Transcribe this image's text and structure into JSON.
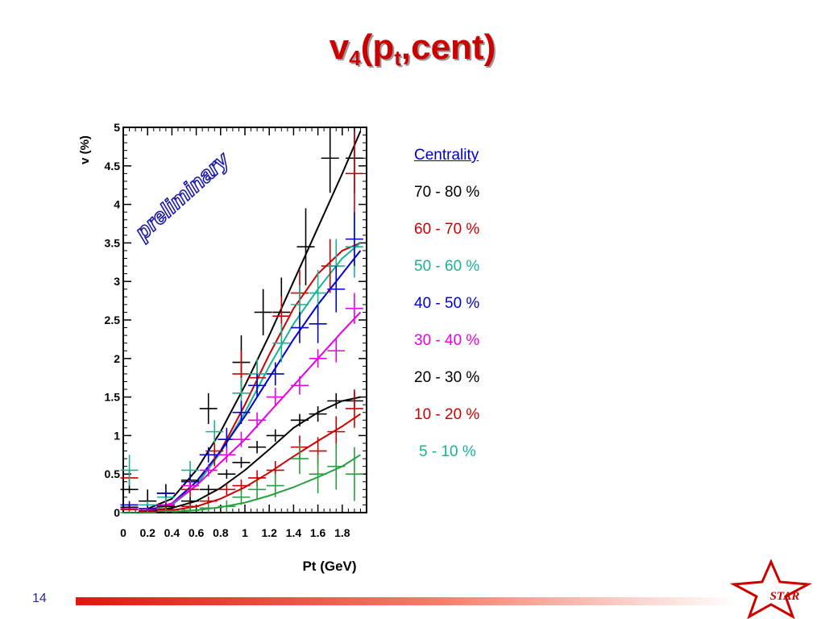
{
  "slide": {
    "title_main": "v",
    "title_sub4": "4",
    "title_mid": "(p",
    "title_subt": "t",
    "title_end": ",cent)",
    "page_number": "14",
    "logo_text": "STAR",
    "accent_color": "#cc0000"
  },
  "legend": {
    "header": "Centrality",
    "items": [
      {
        "label": "70 - 80 %",
        "color": "#000000"
      },
      {
        "label": "60 - 70 %",
        "color": "#cc0000"
      },
      {
        "label": "50 - 60 %",
        "color": "#19b394"
      },
      {
        "label": "40 - 50 %",
        "color": "#0000cc"
      },
      {
        "label": "30 - 40 %",
        "color": "#e600e6"
      },
      {
        "label": "20 - 30 %",
        "color": "#000000"
      },
      {
        "label": "10 - 20 %",
        "color": "#cc0000"
      },
      {
        "label": "5 - 10 %",
        "color": "#19b394"
      }
    ]
  },
  "chart_data": {
    "type": "scatter",
    "title": "",
    "xlabel": "Pt (GeV)",
    "ylabel": "v (%)",
    "watermark": "preliminary",
    "xlim": [
      0,
      2.0
    ],
    "ylim": [
      0,
      5
    ],
    "xticks": [
      "0",
      "0.2",
      "0.4",
      "0.6",
      "0.8",
      "1",
      "1.2",
      "1.4",
      "1.6",
      "1.8"
    ],
    "yticks": [
      "0",
      "0.5",
      "1",
      "1.5",
      "2",
      "2.5",
      "3",
      "3.5",
      "4",
      "4.5",
      "5"
    ],
    "series": [
      {
        "color": "#000000",
        "fit": [
          [
            0.2,
            0.05
          ],
          [
            0.4,
            0.18
          ],
          [
            0.6,
            0.55
          ],
          [
            0.8,
            1.05
          ],
          [
            1.0,
            1.65
          ],
          [
            1.2,
            2.3
          ],
          [
            1.4,
            3.0
          ],
          [
            1.6,
            3.7
          ],
          [
            1.8,
            4.4
          ],
          [
            1.95,
            4.95
          ]
        ],
        "points": [
          [
            0.05,
            0.3,
            0.05
          ],
          [
            0.2,
            0.15,
            0.15
          ],
          [
            0.35,
            0.25,
            0.12
          ],
          [
            0.55,
            0.42,
            0.12
          ],
          [
            0.7,
            1.35,
            0.2
          ],
          [
            0.97,
            1.95,
            0.35
          ],
          [
            1.15,
            2.6,
            0.3
          ],
          [
            1.3,
            2.6,
            0.45
          ],
          [
            1.5,
            3.45,
            0.5
          ],
          [
            1.7,
            4.6,
            0.45
          ],
          [
            1.9,
            4.6,
            0.45
          ]
        ]
      },
      {
        "color": "#cc0000",
        "fit": [
          [
            0.2,
            0.03
          ],
          [
            0.4,
            0.1
          ],
          [
            0.6,
            0.35
          ],
          [
            0.8,
            0.8
          ],
          [
            1.0,
            1.4
          ],
          [
            1.2,
            2.05
          ],
          [
            1.4,
            2.65
          ],
          [
            1.6,
            3.1
          ],
          [
            1.8,
            3.4
          ],
          [
            1.95,
            3.5
          ]
        ],
        "points": [
          [
            0.05,
            0.45,
            0.1
          ],
          [
            0.2,
            0.05,
            0.05
          ],
          [
            0.35,
            0.1,
            0.08
          ],
          [
            0.55,
            0.3,
            0.1
          ],
          [
            0.75,
            0.8,
            0.2
          ],
          [
            0.97,
            1.8,
            0.3
          ],
          [
            1.1,
            1.75,
            0.2
          ],
          [
            1.3,
            2.55,
            0.25
          ],
          [
            1.45,
            2.85,
            0.3
          ],
          [
            1.7,
            3.2,
            0.35
          ],
          [
            1.9,
            4.4,
            0.55
          ]
        ]
      },
      {
        "color": "#19b394",
        "fit": [
          [
            0.2,
            0.03
          ],
          [
            0.4,
            0.1
          ],
          [
            0.6,
            0.35
          ],
          [
            0.8,
            0.78
          ],
          [
            1.0,
            1.3
          ],
          [
            1.2,
            1.9
          ],
          [
            1.4,
            2.45
          ],
          [
            1.6,
            2.9
          ],
          [
            1.8,
            3.3
          ],
          [
            1.95,
            3.5
          ]
        ],
        "points": [
          [
            0.05,
            0.55,
            0.2
          ],
          [
            0.2,
            0.1,
            0.05
          ],
          [
            0.35,
            0.2,
            0.1
          ],
          [
            0.55,
            0.55,
            0.12
          ],
          [
            0.75,
            1.05,
            0.15
          ],
          [
            0.97,
            1.55,
            0.2
          ],
          [
            1.1,
            1.8,
            0.2
          ],
          [
            1.3,
            2.2,
            0.25
          ],
          [
            1.45,
            2.7,
            0.25
          ],
          [
            1.6,
            2.85,
            0.3
          ],
          [
            1.75,
            3.2,
            0.35
          ],
          [
            1.9,
            3.45,
            0.4
          ]
        ]
      },
      {
        "color": "#0000cc",
        "fit": [
          [
            0.2,
            0.03
          ],
          [
            0.4,
            0.12
          ],
          [
            0.6,
            0.4
          ],
          [
            0.8,
            0.8
          ],
          [
            1.0,
            1.25
          ],
          [
            1.2,
            1.75
          ],
          [
            1.4,
            2.25
          ],
          [
            1.6,
            2.7
          ],
          [
            1.8,
            3.1
          ],
          [
            1.95,
            3.4
          ]
        ],
        "points": [
          [
            0.05,
            0.1,
            0.05
          ],
          [
            0.2,
            0.05,
            0.04
          ],
          [
            0.35,
            0.25,
            0.05
          ],
          [
            0.55,
            0.4,
            0.1
          ],
          [
            0.7,
            0.75,
            0.1
          ],
          [
            0.85,
            0.95,
            0.15
          ],
          [
            0.97,
            1.3,
            0.15
          ],
          [
            1.1,
            1.65,
            0.15
          ],
          [
            1.25,
            1.8,
            0.15
          ],
          [
            1.45,
            2.4,
            0.2
          ],
          [
            1.6,
            2.45,
            0.25
          ],
          [
            1.75,
            2.9,
            0.3
          ],
          [
            1.9,
            3.55,
            0.35
          ]
        ]
      },
      {
        "color": "#e600e6",
        "fit": [
          [
            0.2,
            0.03
          ],
          [
            0.4,
            0.12
          ],
          [
            0.6,
            0.35
          ],
          [
            0.8,
            0.65
          ],
          [
            1.0,
            0.95
          ],
          [
            1.2,
            1.3
          ],
          [
            1.4,
            1.65
          ],
          [
            1.6,
            2.0
          ],
          [
            1.8,
            2.35
          ],
          [
            1.95,
            2.6
          ]
        ],
        "points": [
          [
            0.05,
            0.05,
            0.04
          ],
          [
            0.2,
            0.03,
            0.03
          ],
          [
            0.35,
            0.1,
            0.05
          ],
          [
            0.55,
            0.35,
            0.07
          ],
          [
            0.7,
            0.55,
            0.08
          ],
          [
            0.85,
            0.75,
            0.1
          ],
          [
            0.97,
            0.95,
            0.1
          ],
          [
            1.1,
            1.2,
            0.1
          ],
          [
            1.25,
            1.5,
            0.12
          ],
          [
            1.45,
            1.65,
            0.12
          ],
          [
            1.6,
            2.0,
            0.12
          ],
          [
            1.75,
            2.1,
            0.15
          ],
          [
            1.9,
            2.65,
            0.2
          ]
        ]
      },
      {
        "color": "#000000",
        "fit": [
          [
            0.2,
            0.02
          ],
          [
            0.4,
            0.06
          ],
          [
            0.6,
            0.15
          ],
          [
            0.8,
            0.32
          ],
          [
            1.0,
            0.55
          ],
          [
            1.2,
            0.82
          ],
          [
            1.4,
            1.1
          ],
          [
            1.6,
            1.3
          ],
          [
            1.8,
            1.45
          ],
          [
            1.95,
            1.5
          ]
        ],
        "points": [
          [
            0.05,
            0.07,
            0.03
          ],
          [
            0.2,
            0.02,
            0.02
          ],
          [
            0.35,
            0.08,
            0.04
          ],
          [
            0.55,
            0.15,
            0.05
          ],
          [
            0.7,
            0.3,
            0.06
          ],
          [
            0.85,
            0.5,
            0.06
          ],
          [
            0.97,
            0.65,
            0.07
          ],
          [
            1.1,
            0.85,
            0.08
          ],
          [
            1.25,
            1.0,
            0.08
          ],
          [
            1.45,
            1.2,
            0.08
          ],
          [
            1.6,
            1.28,
            0.1
          ],
          [
            1.75,
            1.45,
            0.1
          ],
          [
            1.9,
            1.45,
            0.12
          ]
        ]
      },
      {
        "color": "#cc0000",
        "fit": [
          [
            0.2,
            0.01
          ],
          [
            0.4,
            0.03
          ],
          [
            0.6,
            0.08
          ],
          [
            0.8,
            0.18
          ],
          [
            1.0,
            0.33
          ],
          [
            1.2,
            0.52
          ],
          [
            1.4,
            0.73
          ],
          [
            1.6,
            0.93
          ],
          [
            1.8,
            1.12
          ],
          [
            1.95,
            1.28
          ]
        ],
        "points": [
          [
            0.05,
            0.04,
            0.03
          ],
          [
            0.2,
            0.01,
            0.02
          ],
          [
            0.35,
            0.04,
            0.04
          ],
          [
            0.55,
            0.08,
            0.05
          ],
          [
            0.7,
            0.15,
            0.06
          ],
          [
            0.85,
            0.3,
            0.07
          ],
          [
            0.97,
            0.35,
            0.08
          ],
          [
            1.1,
            0.45,
            0.1
          ],
          [
            1.25,
            0.55,
            0.12
          ],
          [
            1.45,
            0.85,
            0.15
          ],
          [
            1.6,
            0.8,
            0.18
          ],
          [
            1.75,
            1.05,
            0.2
          ],
          [
            1.9,
            1.35,
            0.25
          ]
        ]
      },
      {
        "color": "#28a040",
        "fit": [
          [
            0.4,
            0.01
          ],
          [
            0.6,
            0.03
          ],
          [
            0.8,
            0.07
          ],
          [
            1.0,
            0.13
          ],
          [
            1.2,
            0.22
          ],
          [
            1.4,
            0.33
          ],
          [
            1.6,
            0.46
          ],
          [
            1.8,
            0.6
          ],
          [
            1.95,
            0.75
          ]
        ],
        "points": [
          [
            0.05,
            0.0,
            0.03
          ],
          [
            0.2,
            0.0,
            0.03
          ],
          [
            0.35,
            0.02,
            0.04
          ],
          [
            0.55,
            0.03,
            0.05
          ],
          [
            0.7,
            0.06,
            0.06
          ],
          [
            0.85,
            0.08,
            0.08
          ],
          [
            0.97,
            0.2,
            0.1
          ],
          [
            1.1,
            0.3,
            0.12
          ],
          [
            1.25,
            0.35,
            0.15
          ],
          [
            1.45,
            0.7,
            0.2
          ],
          [
            1.6,
            0.5,
            0.25
          ],
          [
            1.75,
            0.6,
            0.3
          ],
          [
            1.9,
            0.5,
            0.35
          ]
        ]
      }
    ]
  }
}
